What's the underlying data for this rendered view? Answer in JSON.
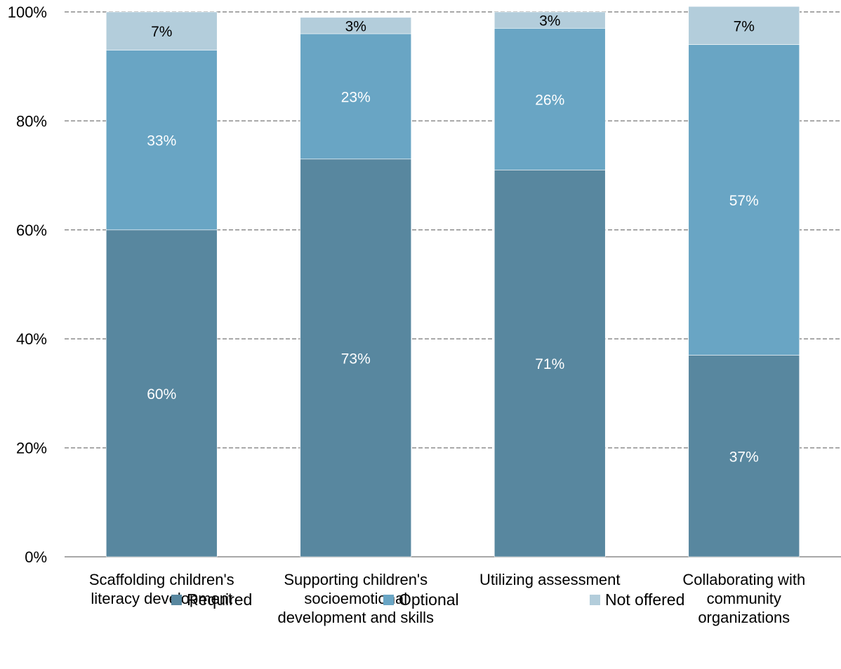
{
  "chart_data": {
    "type": "bar",
    "stacked": true,
    "categories": [
      [
        "Scaffolding children's",
        "literacy development"
      ],
      [
        "Supporting children's",
        "socioemotional",
        "development and skills"
      ],
      [
        "Utilizing assessment"
      ],
      [
        "Collaborating with",
        "community",
        "organizations"
      ]
    ],
    "series": [
      {
        "name": "Required",
        "values": [
          60,
          73,
          71,
          37
        ],
        "labels": [
          "60%",
          "73%",
          "71%",
          "37%"
        ],
        "color": "#58879f",
        "label_color": "#ffffff"
      },
      {
        "name": "Optional",
        "values": [
          33,
          23,
          26,
          57
        ],
        "labels": [
          "33%",
          "23%",
          "26%",
          "57%"
        ],
        "color": "#69a5c4",
        "label_color": "#ffffff"
      },
      {
        "name": "Not offered",
        "values": [
          7,
          3,
          3,
          7
        ],
        "labels": [
          "7%",
          "3%",
          "3%",
          "7%"
        ],
        "color": "#b3cddb",
        "label_color": "#000000"
      }
    ],
    "y_ticks": [
      "0%",
      "20%",
      "40%",
      "60%",
      "80%",
      "100%"
    ],
    "ylim": [
      0,
      100
    ],
    "grid": true,
    "legend_position": "bottom",
    "title": "",
    "xlabel": "",
    "ylabel": ""
  }
}
